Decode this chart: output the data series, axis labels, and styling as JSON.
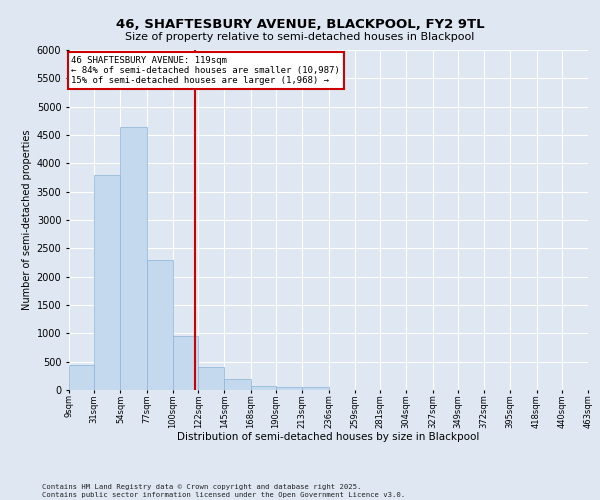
{
  "title": "46, SHAFTESBURY AVENUE, BLACKPOOL, FY2 9TL",
  "subtitle": "Size of property relative to semi-detached houses in Blackpool",
  "xlabel": "Distribution of semi-detached houses by size in Blackpool",
  "ylabel": "Number of semi-detached properties",
  "bar_color": "#c5d9ee",
  "bar_edge_color": "#8ab4d8",
  "background_color": "#dfe8f2",
  "grid_color": "#ffffff",
  "vline_x": 119,
  "vline_color": "#cc0000",
  "annotation_text": "46 SHAFTESBURY AVENUE: 119sqm\n← 84% of semi-detached houses are smaller (10,987)\n15% of semi-detached houses are larger (1,968) →",
  "footer_text": "Contains HM Land Registry data © Crown copyright and database right 2025.\nContains public sector information licensed under the Open Government Licence v3.0.",
  "bin_labels": [
    "9sqm",
    "31sqm",
    "54sqm",
    "77sqm",
    "100sqm",
    "122sqm",
    "145sqm",
    "168sqm",
    "190sqm",
    "213sqm",
    "236sqm",
    "259sqm",
    "281sqm",
    "304sqm",
    "327sqm",
    "349sqm",
    "372sqm",
    "395sqm",
    "418sqm",
    "440sqm",
    "463sqm"
  ],
  "bin_edges": [
    9,
    31,
    54,
    77,
    100,
    122,
    145,
    168,
    190,
    213,
    236,
    259,
    281,
    304,
    327,
    349,
    372,
    395,
    418,
    440,
    463
  ],
  "bar_heights": [
    450,
    3800,
    4650,
    2300,
    950,
    400,
    200,
    75,
    55,
    50,
    0,
    0,
    0,
    0,
    0,
    0,
    0,
    0,
    0,
    0
  ],
  "ylim": [
    0,
    6000
  ],
  "yticks": [
    0,
    500,
    1000,
    1500,
    2000,
    2500,
    3000,
    3500,
    4000,
    4500,
    5000,
    5500,
    6000
  ]
}
